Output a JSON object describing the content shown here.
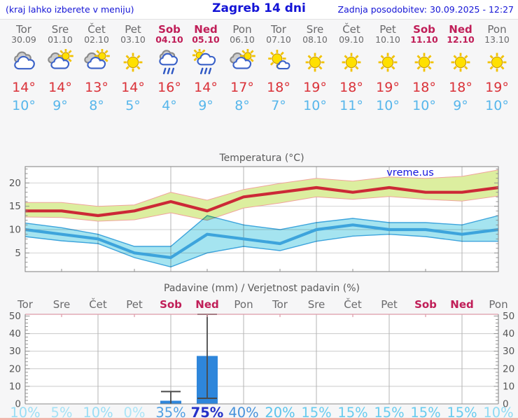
{
  "header": {
    "left_note": "(kraj lahko izberete v meniju)",
    "title": "Zagreb 14 dni",
    "updated": "Zadnja posodobitev: 30.09.2025 - 12:27"
  },
  "colors": {
    "link_blue": "#1414d6",
    "weekday_text": "#6a6a6c",
    "weekend_text": "#c01e58",
    "tmax_text": "#da3138",
    "tmin_text": "#57b6eb"
  },
  "days": [
    {
      "name": "Tor",
      "date": "30.09",
      "weekend": false,
      "icon": "cloudy-icon",
      "tmax_label": "14°",
      "tmin_label": "10°"
    },
    {
      "name": "Sre",
      "date": "01.10",
      "weekend": false,
      "icon": "partly-sunny-icon",
      "tmax_label": "14°",
      "tmin_label": "9°"
    },
    {
      "name": "Čet",
      "date": "02.10",
      "weekend": false,
      "icon": "partly-sunny-icon",
      "tmax_label": "13°",
      "tmin_label": "8°"
    },
    {
      "name": "Pet",
      "date": "03.10",
      "weekend": false,
      "icon": "sunny-icon",
      "tmax_label": "14°",
      "tmin_label": "5°"
    },
    {
      "name": "Sob",
      "date": "04.10",
      "weekend": true,
      "icon": "rain-icon",
      "tmax_label": "16°",
      "tmin_label": "4°"
    },
    {
      "name": "Ned",
      "date": "05.10",
      "weekend": true,
      "icon": "sun-rain-icon",
      "tmax_label": "14°",
      "tmin_label": "9°"
    },
    {
      "name": "Pon",
      "date": "06.10",
      "weekend": false,
      "icon": "partly-sunny-icon",
      "tmax_label": "17°",
      "tmin_label": "8°"
    },
    {
      "name": "Tor",
      "date": "07.10",
      "weekend": false,
      "icon": "mostly-sunny-icon",
      "tmax_label": "18°",
      "tmin_label": "7°"
    },
    {
      "name": "Sre",
      "date": "08.10",
      "weekend": false,
      "icon": "sunny-icon",
      "tmax_label": "19°",
      "tmin_label": "10°"
    },
    {
      "name": "Čet",
      "date": "09.10",
      "weekend": false,
      "icon": "sunny-icon",
      "tmax_label": "18°",
      "tmin_label": "11°"
    },
    {
      "name": "Pet",
      "date": "10.10",
      "weekend": false,
      "icon": "sunny-icon",
      "tmax_label": "19°",
      "tmin_label": "10°"
    },
    {
      "name": "Sob",
      "date": "11.10",
      "weekend": true,
      "icon": "sunny-icon",
      "tmax_label": "18°",
      "tmin_label": "10°"
    },
    {
      "name": "Ned",
      "date": "12.10",
      "weekend": true,
      "icon": "sunny-icon",
      "tmax_label": "18°",
      "tmin_label": "9°"
    },
    {
      "name": "Pon",
      "date": "13.10",
      "weekend": false,
      "icon": "sunny-icon",
      "tmax_label": "19°",
      "tmin_label": "10°"
    }
  ],
  "chart_data": [
    {
      "type": "line",
      "title": "Temperatura (°C)",
      "watermark": "vreme.us",
      "watermark_color": "#1414dd",
      "categories": [
        "Tor 30.09",
        "Sre 01.10",
        "Čet 02.10",
        "Pet 03.10",
        "Sob 04.10",
        "Ned 05.10",
        "Pon 06.10",
        "Tor 07.10",
        "Sre 08.10",
        "Čet 09.10",
        "Pet 10.10",
        "Sob 11.10",
        "Ned 12.10",
        "Pon 13.10"
      ],
      "ylim": [
        1,
        23.5
      ],
      "yticks": [
        5,
        10,
        15,
        20
      ],
      "minor_tick_step": 1,
      "grid_on": true,
      "series": [
        {
          "name": "tmax",
          "values": [
            14,
            14,
            13,
            14,
            16,
            14,
            17,
            18,
            19,
            18,
            19,
            18,
            18,
            19
          ]
        },
        {
          "name": "tmax_band_upper",
          "values": [
            15.8,
            15.8,
            15.0,
            15.3,
            18.0,
            16.3,
            18.6,
            19.9,
            21.0,
            20.4,
            21.3,
            21.0,
            21.4,
            22.8
          ]
        },
        {
          "name": "tmax_band_lower",
          "values": [
            12.7,
            12.6,
            11.8,
            12.1,
            13.6,
            12.0,
            14.6,
            15.7,
            17.0,
            16.5,
            17.1,
            16.5,
            16.1,
            17.2
          ]
        },
        {
          "name": "tmin",
          "values": [
            10,
            9,
            8,
            5,
            4,
            9,
            8,
            7,
            10,
            11,
            10,
            10,
            9,
            10
          ]
        },
        {
          "name": "tmin_band_upper",
          "values": [
            11.4,
            10.4,
            9.0,
            6.4,
            6.4,
            13.0,
            11.0,
            10.0,
            11.5,
            12.4,
            11.5,
            11.5,
            11.0,
            13.0
          ]
        },
        {
          "name": "tmin_band_lower",
          "values": [
            8.5,
            7.6,
            7.0,
            4.0,
            2.0,
            5.0,
            6.4,
            5.5,
            7.5,
            8.6,
            9.0,
            8.5,
            7.5,
            7.5
          ]
        }
      ],
      "colors": {
        "tmax_line": "#cc2936",
        "tmax_band": "#dcee9f",
        "tmax_band_edge": "#f0a49c",
        "tmin_line": "#3da4dc",
        "tmin_band": "#a5e4f0",
        "grid": "#b4b4b4",
        "axis": "#8a8a8a",
        "tick_label": "#555555",
        "title": "#5a5a5a"
      }
    },
    {
      "type": "bar",
      "title": "Padavine (mm) / Verjetnost padavin (%)",
      "categories": [
        "Tor",
        "Sre",
        "Čet",
        "Pet",
        "Sob",
        "Ned",
        "Pon",
        "Tor",
        "Sre",
        "Čet",
        "Pet",
        "Sob",
        "Ned",
        "Pon"
      ],
      "values": [
        0,
        0,
        0,
        0,
        1.8,
        27.3,
        0,
        0,
        0,
        0,
        0,
        0,
        0,
        0
      ],
      "whisker_low": [
        null,
        null,
        null,
        null,
        0,
        3.2,
        null,
        null,
        null,
        null,
        null,
        null,
        null,
        null
      ],
      "whisker_high": [
        null,
        null,
        null,
        null,
        7,
        51,
        null,
        null,
        null,
        null,
        null,
        null,
        null,
        null
      ],
      "probabilities": [
        10,
        5,
        10,
        0,
        35,
        75,
        40,
        20,
        15,
        15,
        15,
        15,
        15,
        10
      ],
      "prob_labels": [
        "10%",
        "5%",
        "10%",
        "0%",
        "35%",
        "75%",
        "40%",
        "20%",
        "15%",
        "15%",
        "15%",
        "15%",
        "15%",
        "10%"
      ],
      "prob_colors": [
        "#9bdef5",
        "#a5e2f6",
        "#9bdef5",
        "#ace5f7",
        "#52a0e2",
        "#2431c8",
        "#4792db",
        "#5ac4ec",
        "#68ccef",
        "#68ccef",
        "#68ccef",
        "#68ccef",
        "#68ccef",
        "#8fdbf3"
      ],
      "ylim": [
        0,
        51
      ],
      "yticks": [
        0,
        10,
        20,
        30,
        40,
        50
      ],
      "minor_tick_step": 2,
      "grid_on": true,
      "colors": {
        "bar": "#2e86db",
        "whisker": "#4a4a4a",
        "grid": "#c9c9c9",
        "vgrid": "#b4b4b4",
        "axis": "#8a8a8a",
        "top_border": "#dd9aa8",
        "tick_label": "#555555",
        "title": "#5a5a5a"
      }
    }
  ]
}
